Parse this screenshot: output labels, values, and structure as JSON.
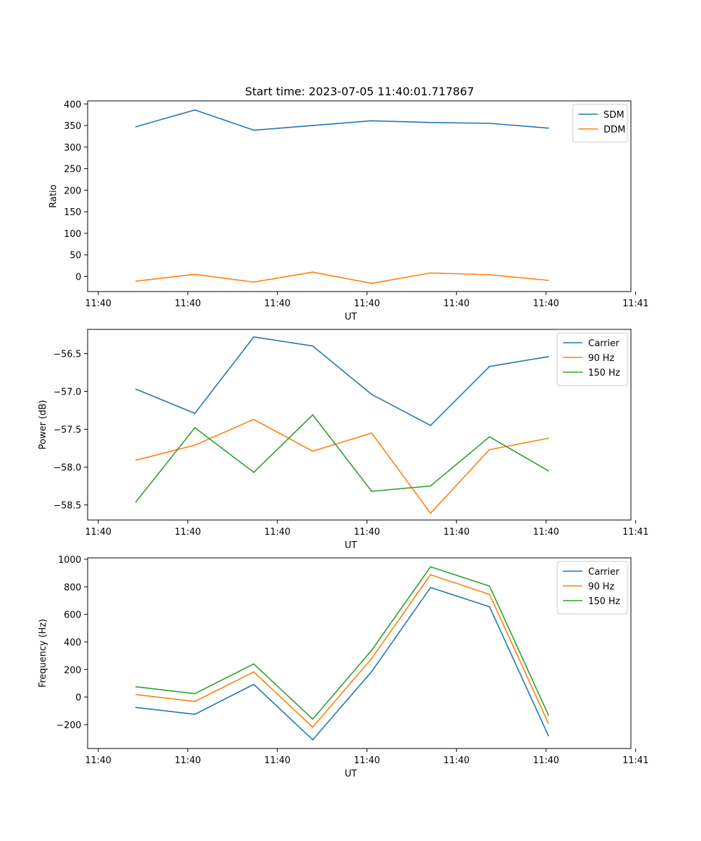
{
  "title": "Start time: 2023-07-05 11:40:01.717867",
  "colors": {
    "blue": "#1f77b4",
    "orange": "#ff7f0e",
    "green": "#2ca02c"
  },
  "chart_data": [
    {
      "type": "line",
      "title": "Start time: 2023-07-05 11:40:01.717867",
      "xlabel": "UT",
      "ylabel": "Ratio",
      "x": [
        1,
        2,
        3,
        4,
        5,
        6,
        7,
        8
      ],
      "xlim": [
        0.18,
        9.4
      ],
      "x_ticks": [
        0.36,
        1.88,
        3.4,
        4.92,
        6.44,
        7.96,
        9.48
      ],
      "x_tick_labels": [
        "11:40",
        "11:40",
        "11:40",
        "11:40",
        "11:40",
        "11:40",
        "11:41"
      ],
      "ylim": [
        -35,
        407
      ],
      "y_ticks": [
        0,
        50,
        100,
        150,
        200,
        250,
        300,
        350,
        400
      ],
      "y_tick_labels": [
        "0",
        "50",
        "100",
        "150",
        "200",
        "250",
        "300",
        "350",
        "400"
      ],
      "legend_position": "top-right",
      "series": [
        {
          "name": "SDM",
          "color": "#1f77b4",
          "values": [
            347,
            386,
            339,
            350,
            361,
            357,
            355,
            344
          ]
        },
        {
          "name": "DDM",
          "color": "#ff7f0e",
          "values": [
            -11,
            5,
            -13,
            10,
            -16,
            8,
            4,
            -9
          ]
        }
      ]
    },
    {
      "type": "line",
      "xlabel": "UT",
      "ylabel": "Power (dB)",
      "x": [
        1,
        2,
        3,
        4,
        5,
        6,
        7,
        8
      ],
      "xlim": [
        0.18,
        9.4
      ],
      "x_ticks": [
        0.36,
        1.88,
        3.4,
        4.92,
        6.44,
        7.96,
        9.48
      ],
      "x_tick_labels": [
        "11:40",
        "11:40",
        "11:40",
        "11:40",
        "11:40",
        "11:40",
        "11:41"
      ],
      "ylim": [
        -58.7,
        -56.18
      ],
      "y_ticks": [
        -58.5,
        -58.0,
        -57.5,
        -57.0,
        -56.5
      ],
      "y_tick_labels": [
        "−58.5",
        "−58.0",
        "−57.5",
        "−57.0",
        "−56.5"
      ],
      "legend_position": "top-right",
      "series": [
        {
          "name": "Carrier",
          "color": "#1f77b4",
          "values": [
            -56.97,
            -57.29,
            -56.28,
            -56.4,
            -57.04,
            -57.45,
            -56.67,
            -56.54
          ]
        },
        {
          "name": "90 Hz",
          "color": "#ff7f0e",
          "values": [
            -57.91,
            -57.71,
            -57.37,
            -57.79,
            -57.55,
            -58.61,
            -57.77,
            -57.62
          ]
        },
        {
          "name": "150 Hz",
          "color": "#2ca02c",
          "values": [
            -58.46,
            -57.48,
            -58.07,
            -57.31,
            -58.32,
            -58.25,
            -57.6,
            -58.05
          ]
        }
      ]
    },
    {
      "type": "line",
      "xlabel": "UT",
      "ylabel": "Frequency (Hz)",
      "x": [
        1,
        2,
        3,
        4,
        5,
        6,
        7,
        8
      ],
      "xlim": [
        0.18,
        9.4
      ],
      "x_ticks": [
        0.36,
        1.88,
        3.4,
        4.92,
        6.44,
        7.96,
        9.48
      ],
      "x_tick_labels": [
        "11:40",
        "11:40",
        "11:40",
        "11:40",
        "11:40",
        "11:40",
        "11:41"
      ],
      "ylim": [
        -373,
        1010
      ],
      "y_ticks": [
        -200,
        0,
        200,
        400,
        600,
        800,
        1000
      ],
      "y_tick_labels": [
        "−200",
        "0",
        "200",
        "400",
        "600",
        "800",
        "1000"
      ],
      "legend_position": "top-right",
      "series": [
        {
          "name": "Carrier",
          "color": "#1f77b4",
          "values": [
            -75,
            -125,
            92,
            -310,
            185,
            795,
            655,
            -280
          ]
        },
        {
          "name": "90 Hz",
          "color": "#ff7f0e",
          "values": [
            18,
            -32,
            182,
            -218,
            280,
            888,
            745,
            -190
          ]
        },
        {
          "name": "150 Hz",
          "color": "#2ca02c",
          "values": [
            75,
            25,
            240,
            -160,
            340,
            945,
            805,
            -130
          ]
        }
      ]
    }
  ]
}
